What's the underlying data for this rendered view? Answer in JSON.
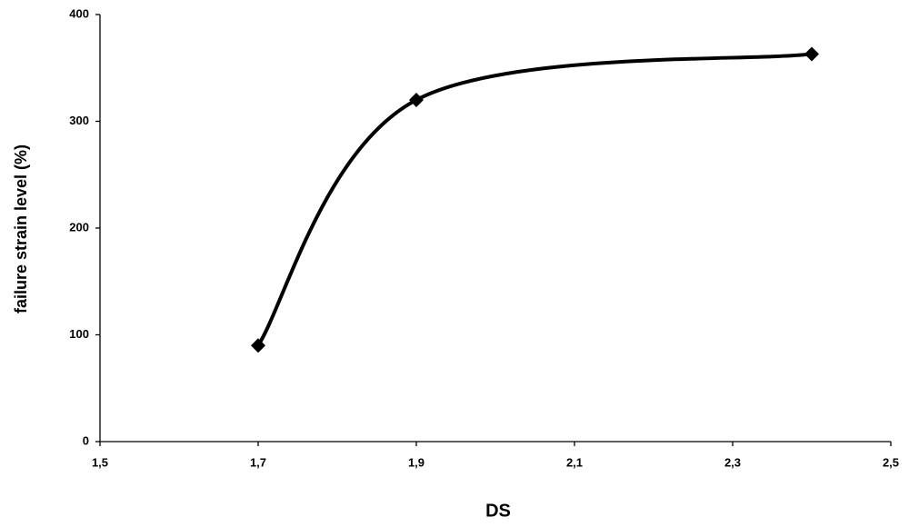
{
  "chart_data": {
    "type": "line",
    "smooth": true,
    "marker": "diamond",
    "color": "#000000",
    "x_label": "DS",
    "y_label": "failure strain level (%)",
    "x": [
      1.7,
      1.9,
      2.4
    ],
    "values": [
      90,
      320,
      363
    ],
    "xlim": [
      1.5,
      2.5
    ],
    "xticks": [
      {
        "value": 1.5,
        "label": "1,5"
      },
      {
        "value": 1.7,
        "label": "1,7"
      },
      {
        "value": 1.9,
        "label": "1,9"
      },
      {
        "value": 2.1,
        "label": "2,1"
      },
      {
        "value": 2.3,
        "label": "2,3"
      },
      {
        "value": 2.5,
        "label": "2,5"
      }
    ],
    "ylim": [
      0,
      400
    ],
    "yticks": [
      0,
      100,
      200,
      300,
      400
    ],
    "grid": false
  }
}
